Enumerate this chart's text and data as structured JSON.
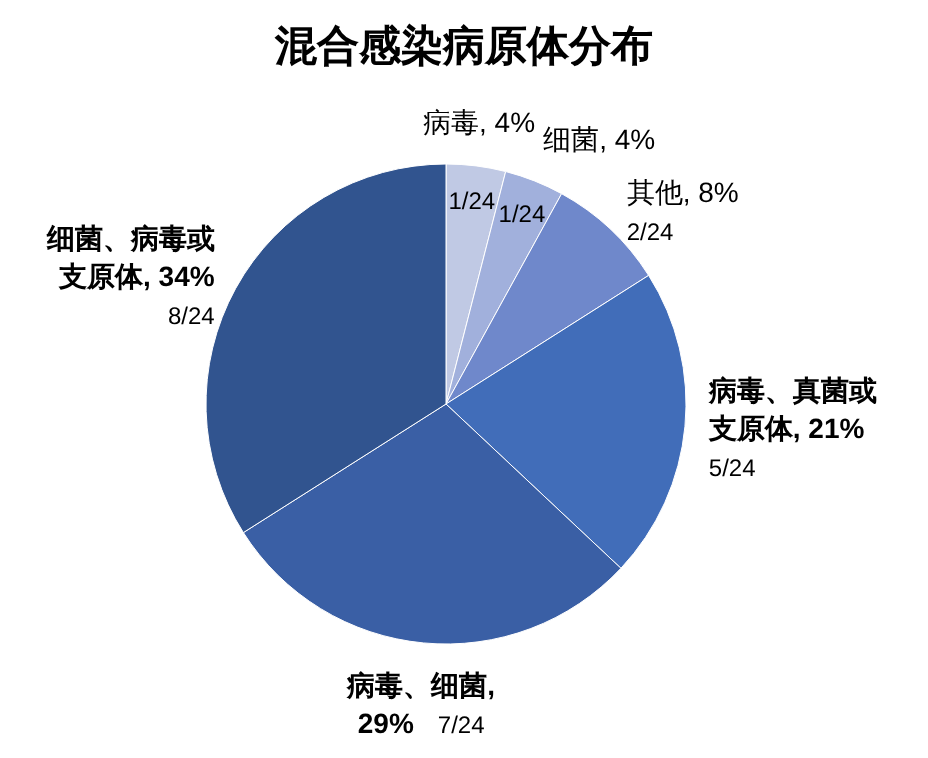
{
  "chart_data": {
    "type": "pie",
    "title": "混合感染病原体分布",
    "categories": [
      "病毒, 4%",
      "细菌, 4%",
      "其他, 8%",
      "病毒、真菌或支原体, 21%",
      "病毒、细菌, 29%",
      "细菌、病毒或支原体, 34%"
    ],
    "values": [
      4,
      4,
      8,
      21,
      29,
      34
    ],
    "colors": [
      "#c0c9e4",
      "#a1b0dc",
      "#6f88cb",
      "#416db9",
      "#3a5fa5",
      "#31548f"
    ],
    "value_labels": [
      "1/24",
      "1/24",
      "2/24",
      "5/24",
      "7/24",
      "8/24"
    ]
  }
}
